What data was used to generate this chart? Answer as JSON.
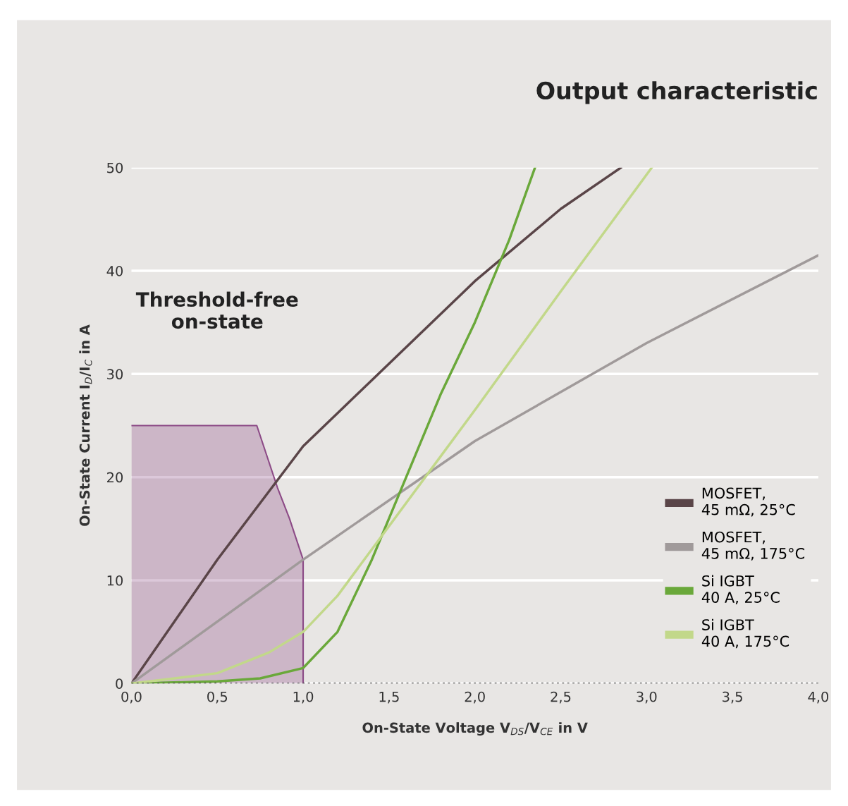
{
  "chart_data": {
    "type": "line",
    "title": "Output characteristic",
    "xlabel": "On-State Voltage V$_{DS}$/V$_{CE}$ in V",
    "ylabel": "On-State Current I$_{D}$/I$_{C}$ in A",
    "xlim": [
      0,
      4.0
    ],
    "ylim": [
      0,
      50
    ],
    "xticks": [
      {
        "value": 0,
        "label": "0,0"
      },
      {
        "value": 0.5,
        "label": "0,5"
      },
      {
        "value": 1.0,
        "label": "1,0"
      },
      {
        "value": 1.5,
        "label": "1,5"
      },
      {
        "value": 2.0,
        "label": "2,0"
      },
      {
        "value": 2.5,
        "label": "2,5"
      },
      {
        "value": 3.0,
        "label": "3,0"
      },
      {
        "value": 3.5,
        "label": "3,5"
      },
      {
        "value": 4.0,
        "label": "4,0"
      }
    ],
    "yticks": [
      0,
      10,
      20,
      30,
      40,
      50
    ],
    "grid": "y",
    "legend": "right",
    "line_style": "solid",
    "series": [
      {
        "type": "area",
        "color": "#8c4a86",
        "x": [
          0,
          0.73,
          0.85,
          0.92,
          1.0,
          1.0
        ],
        "values": [
          25,
          25,
          19,
          16,
          12,
          0
        ]
      },
      {
        "name": "MOSFET,\n45 mΩ, 25°C",
        "color": "#5a4548",
        "x": [
          0,
          0.25,
          0.5,
          0.75,
          1.0,
          1.25,
          1.5,
          2.0,
          2.5,
          2.85
        ],
        "values": [
          0,
          6,
          12,
          17.5,
          23,
          27,
          31,
          39,
          46,
          50
        ]
      },
      {
        "name": "MOSFET,\n45 mΩ, 175°C",
        "color": "#a09a9a",
        "x": [
          0,
          1.0,
          2.0,
          3.0,
          4.0
        ],
        "values": [
          0,
          12,
          23.5,
          33,
          41.5
        ]
      },
      {
        "name": "Si IGBT\n40 A, 25°C",
        "color": "#6aa83a",
        "x": [
          0,
          0.5,
          0.75,
          1.0,
          1.2,
          1.4,
          1.6,
          1.8,
          2.0,
          2.2,
          2.35
        ],
        "values": [
          0,
          0.2,
          0.5,
          1.5,
          5,
          12,
          20,
          28,
          35,
          43,
          50
        ]
      },
      {
        "name": "Si IGBT\n40 A, 175°C",
        "color": "#c2d88a",
        "x": [
          0,
          0.5,
          0.8,
          1.0,
          1.2,
          1.4,
          1.6,
          1.8,
          2.0,
          2.5,
          3.03
        ],
        "values": [
          0,
          1,
          3,
          5,
          8.5,
          13,
          17.5,
          22,
          26.5,
          38,
          50
        ]
      }
    ],
    "ref_lines": [
      {
        "axis": "y",
        "value": 0,
        "color": "#555555",
        "line_style": "dotted"
      }
    ],
    "annotations": [
      "Threshold-free\non-state"
    ]
  }
}
